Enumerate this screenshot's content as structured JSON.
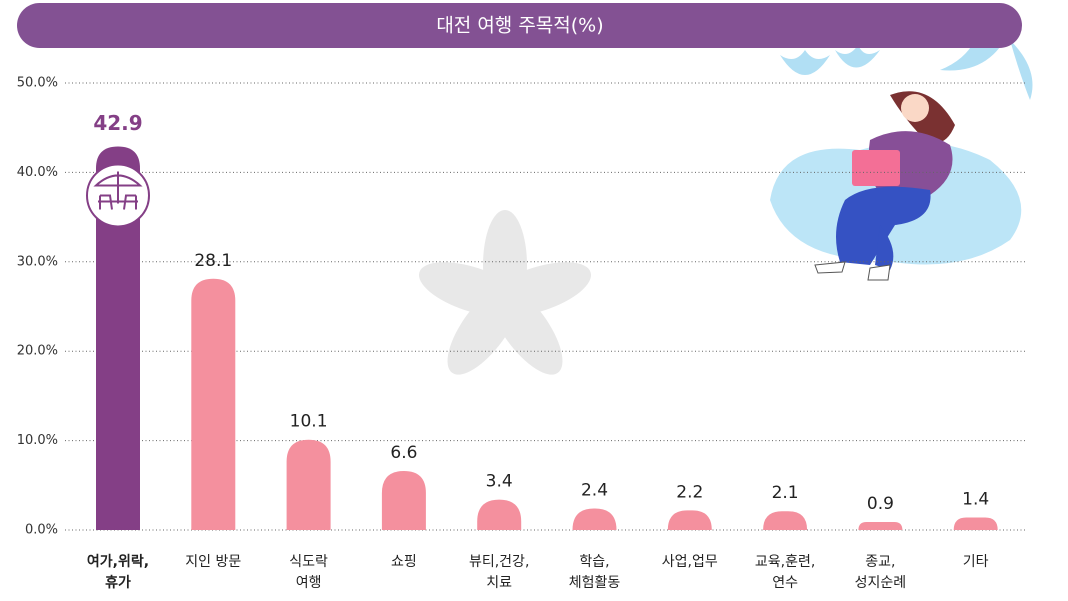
{
  "chart_data": {
    "type": "bar",
    "title": "대전 여행 주목적(%)",
    "categories": [
      "여가,위락,\n휴가",
      "지인 방문",
      "식도락\n여행",
      "쇼핑",
      "뷰티,건강,\n치료",
      "학습,\n체험활동",
      "사업,업무",
      "교육,훈련,\n연수",
      "종교,\n성지순례",
      "기타"
    ],
    "values": [
      42.9,
      28.1,
      10.1,
      6.6,
      3.4,
      2.4,
      2.2,
      2.1,
      0.9,
      1.4
    ],
    "colors": [
      "#843f86",
      "#f4909e",
      "#f4909e",
      "#f4909e",
      "#f4909e",
      "#f4909e",
      "#f4909e",
      "#f4909e",
      "#f4909e",
      "#f4909e"
    ],
    "highlight": 0,
    "ylim": [
      0,
      50
    ],
    "yticks": [
      {
        "value": 0,
        "label": "0.0%"
      },
      {
        "value": 10,
        "label": "10.0%"
      },
      {
        "value": 20,
        "label": "20.0%"
      },
      {
        "value": 30,
        "label": "30.0%"
      },
      {
        "value": 40,
        "label": "40.0%"
      },
      {
        "value": 50,
        "label": "50.0%"
      }
    ],
    "grid": true
  }
}
